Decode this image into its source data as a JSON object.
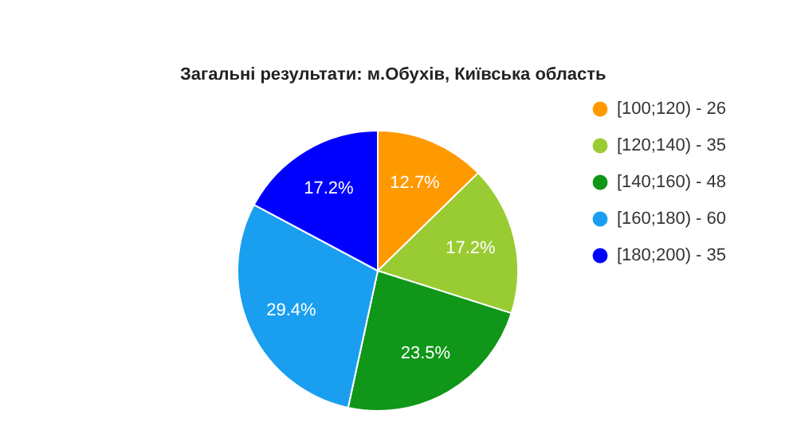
{
  "chart_data": {
    "type": "pie",
    "title": "Загальні результати: м.Обухів, Київська область",
    "categories": [
      "[100;120) - 26",
      "[120;140) - 35",
      "[140;160) - 48",
      "[160;180) - 60",
      "[180;200) - 35"
    ],
    "values": [
      12.7,
      17.2,
      23.5,
      29.4,
      17.2
    ],
    "value_labels": [
      "12.7%",
      "17.2%",
      "23.5%",
      "29.4%",
      "17.2%"
    ],
    "colors": [
      "#ff9900",
      "#99cc33",
      "#109618",
      "#1a9ff0",
      "#0000ff"
    ],
    "legend": "right"
  }
}
